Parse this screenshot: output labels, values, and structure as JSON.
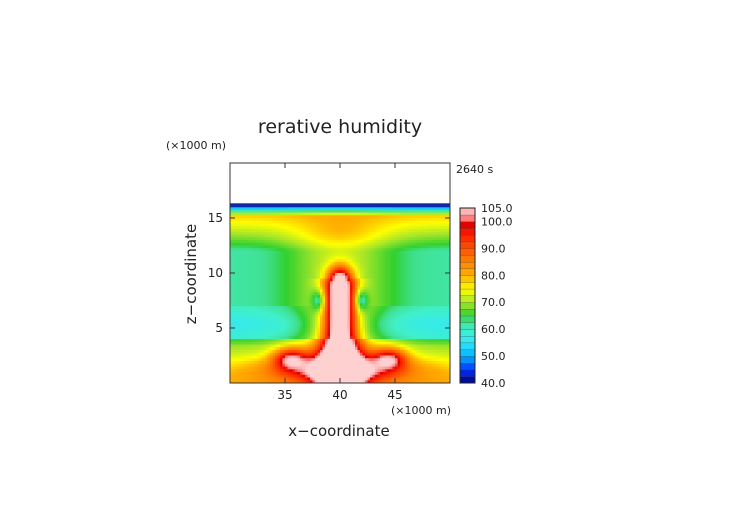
{
  "chart_data": {
    "type": "heatmap",
    "title": "rerative humidity",
    "time_label": "2640 s",
    "xlabel": "x−coordinate",
    "ylabel": "z−coordinate",
    "x_unit": "(×1000 m)",
    "y_unit": "(×1000 m)",
    "xlim": [
      30,
      50
    ],
    "ylim": [
      0,
      20
    ],
    "x_ticks": [
      35,
      40,
      45
    ],
    "y_ticks": [
      5,
      10,
      15
    ],
    "x_tick_labels": [
      "35",
      "40",
      "45"
    ],
    "y_tick_labels": [
      "5",
      "10",
      "15"
    ],
    "colorbar": {
      "min": 40,
      "max": 105,
      "tick_values": [
        105,
        100,
        90,
        80,
        70,
        60,
        50,
        40
      ],
      "tick_labels": [
        "105.0",
        "100.0",
        "90.0",
        "80.0",
        "70.0",
        "60.0",
        "50.0",
        "40.0"
      ],
      "stops": [
        {
          "value": 40,
          "color": "#000080"
        },
        {
          "value": 45,
          "color": "#0030ff"
        },
        {
          "value": 50,
          "color": "#00b4ff"
        },
        {
          "value": 55,
          "color": "#30e6ff"
        },
        {
          "value": 60,
          "color": "#40f0c8"
        },
        {
          "value": 63,
          "color": "#40e090"
        },
        {
          "value": 65,
          "color": "#30d030"
        },
        {
          "value": 70,
          "color": "#a8e628"
        },
        {
          "value": 75,
          "color": "#ffff00"
        },
        {
          "value": 80,
          "color": "#ffb000"
        },
        {
          "value": 87,
          "color": "#ff7000"
        },
        {
          "value": 95,
          "color": "#ff2000"
        },
        {
          "value": 99,
          "color": "#e00000"
        },
        {
          "value": 101,
          "color": "#ff7a7a"
        },
        {
          "value": 105,
          "color": "#ffd0d0"
        }
      ]
    },
    "field_notes": {
      "above_cloud_top_value": null,
      "cloud_top_km": 16.2
    }
  }
}
